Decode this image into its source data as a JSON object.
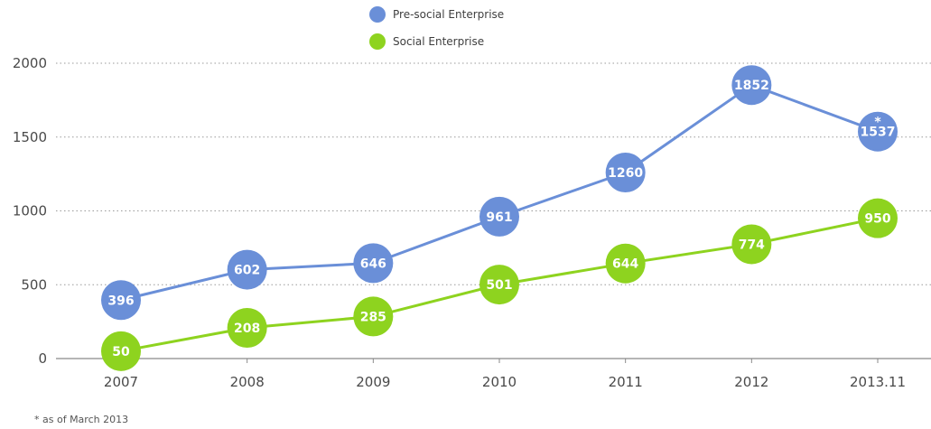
{
  "chart_data": {
    "type": "line",
    "categories": [
      "2007",
      "2008",
      "2009",
      "2010",
      "2011",
      "2012",
      "2013.11"
    ],
    "ylim": [
      0,
      2000
    ],
    "yticks": [
      0,
      500,
      1000,
      1500,
      2000
    ],
    "grid": "horizontal dotted",
    "legend_position": "top-center",
    "series": [
      {
        "name": "Pre-social Enterprise",
        "color": "#6a8fd8",
        "values": [
          396,
          602,
          646,
          961,
          1260,
          1852,
          1537
        ],
        "labels": [
          "396",
          "602",
          "646",
          "961",
          "1260",
          "1852",
          "1537"
        ]
      },
      {
        "name": "Social Enterprise",
        "color": "#8ed31f",
        "values": [
          50,
          208,
          285,
          501,
          644,
          774,
          950
        ],
        "labels": [
          "50",
          "208",
          "285",
          "501",
          "644",
          "774",
          "950"
        ]
      }
    ],
    "annotations": [
      {
        "series": 0,
        "point": 6,
        "text": "*"
      }
    ],
    "footnote": "* as of March 2013"
  }
}
